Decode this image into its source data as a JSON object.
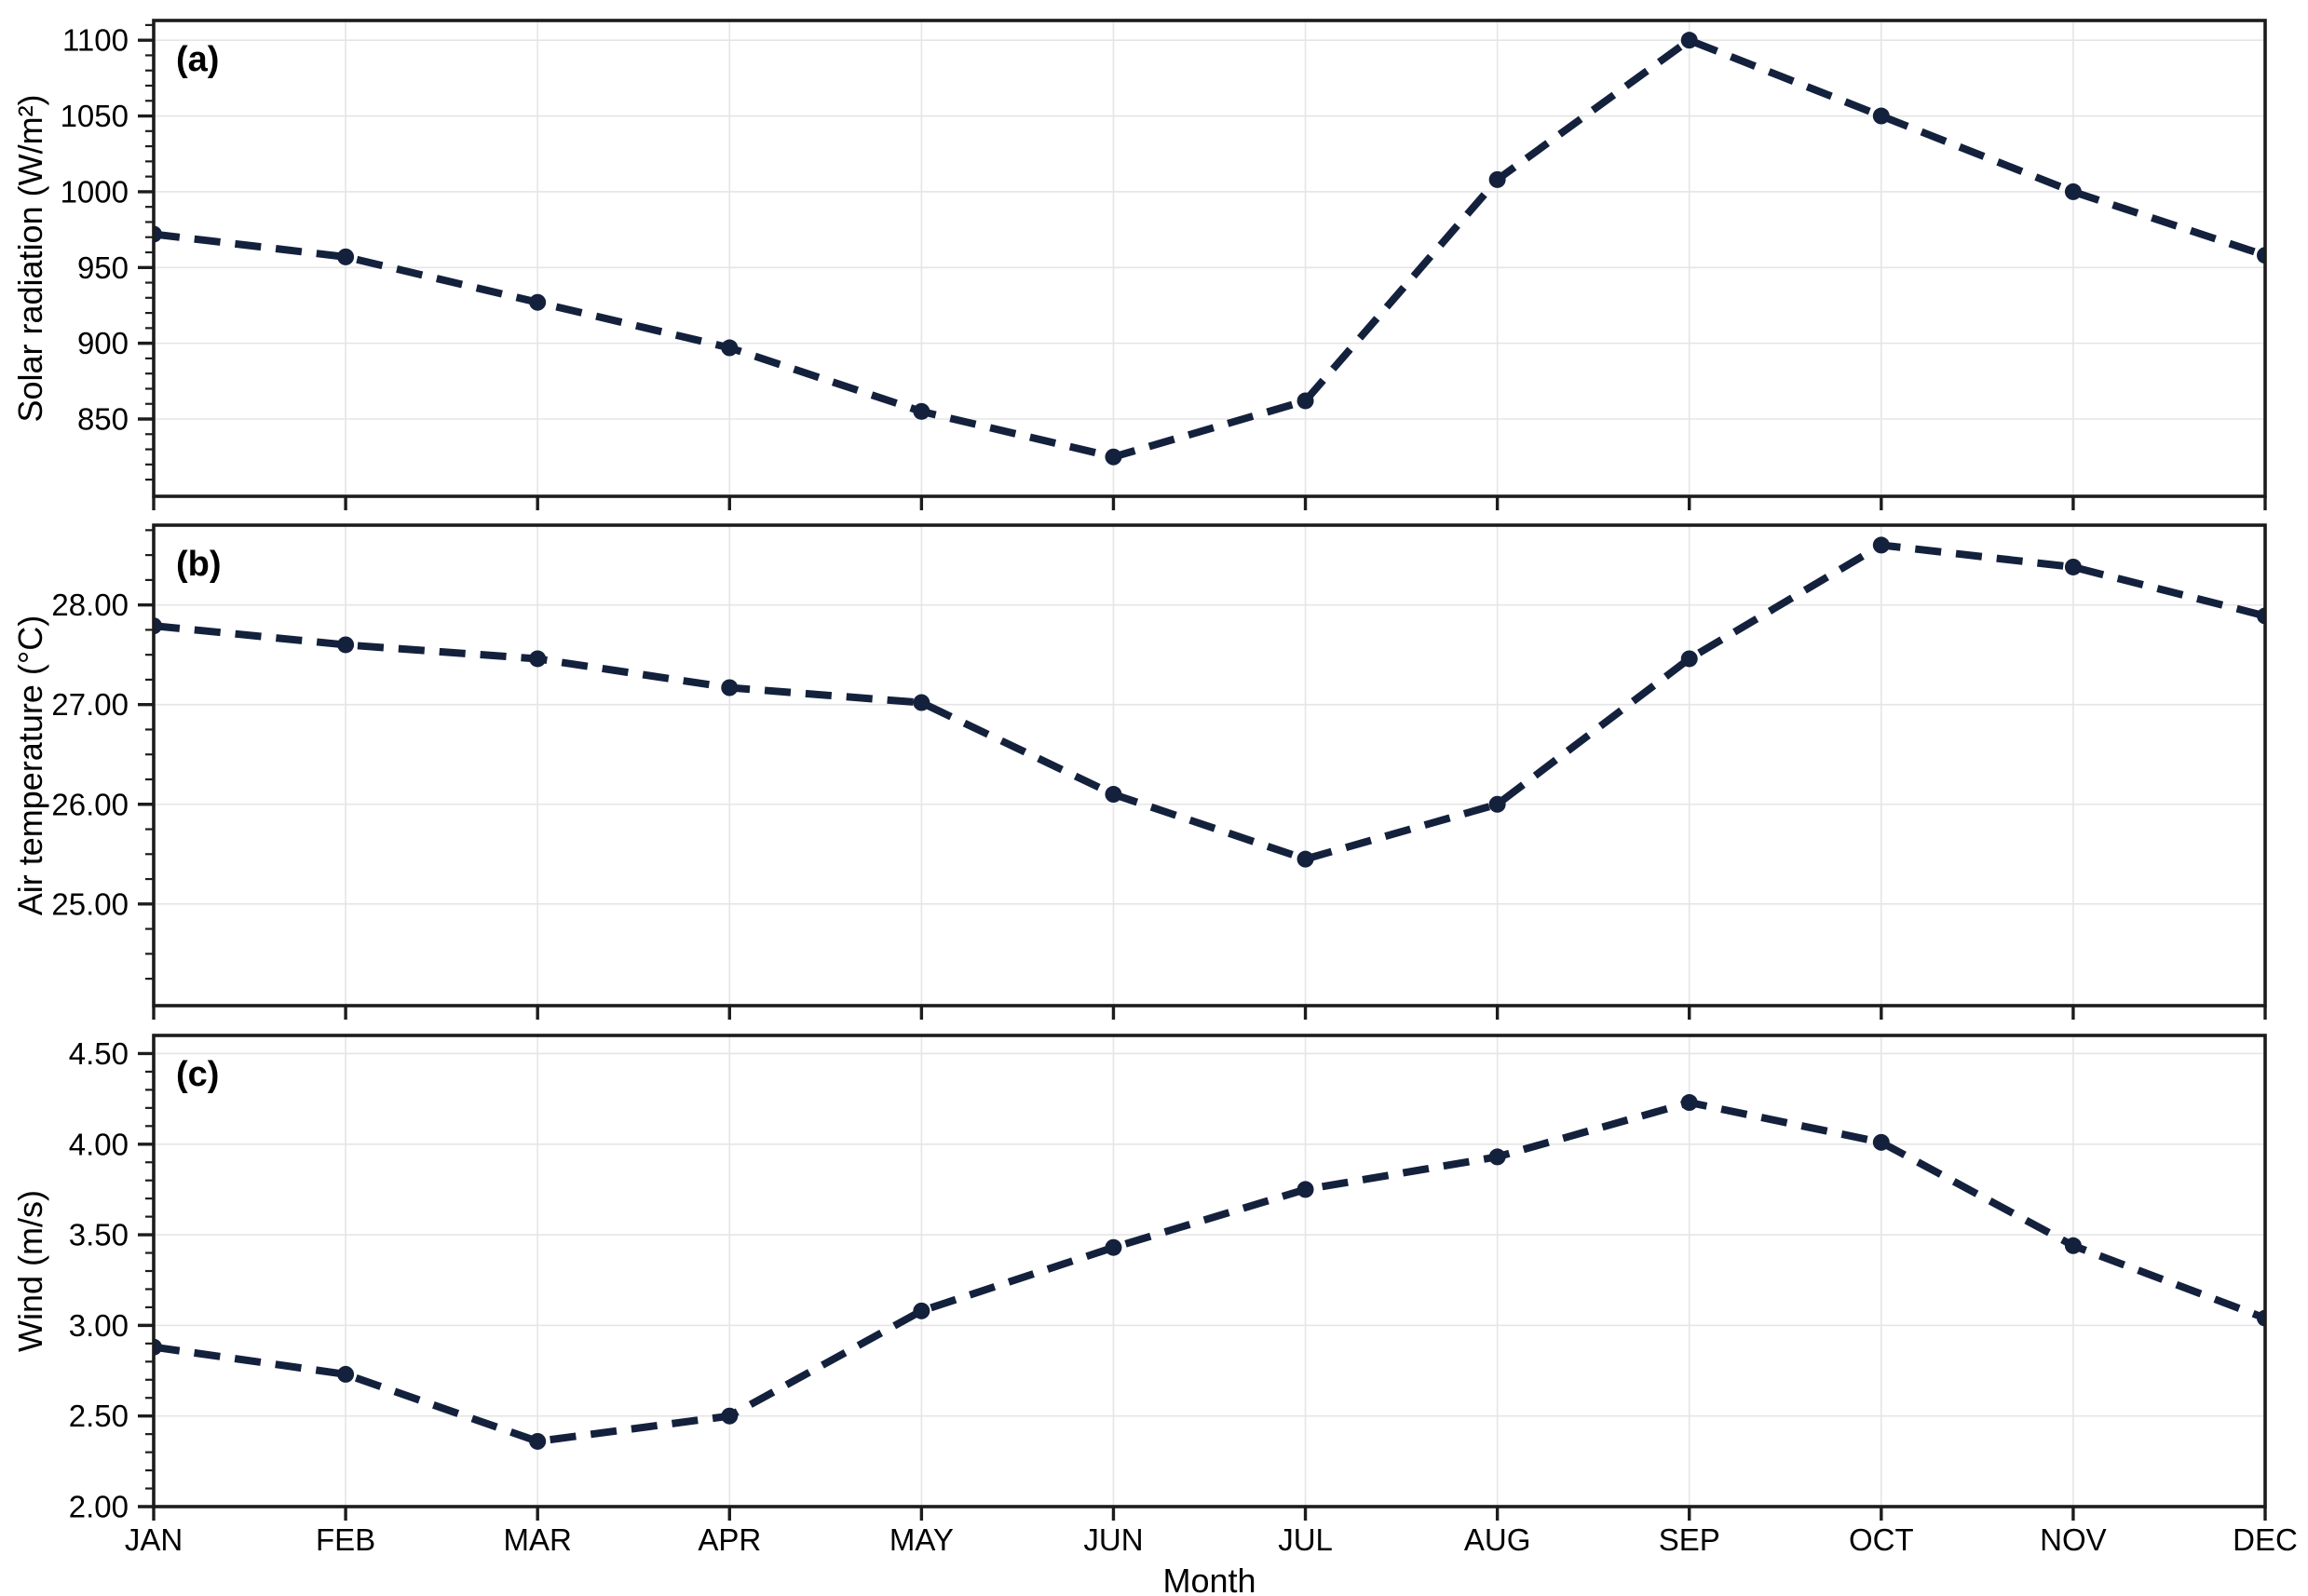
{
  "style": {
    "line_color": "#14213d",
    "marker_color": "#14213d",
    "grid_color": "#e5e5e5",
    "spine_color": "#1c1c1c",
    "background_color": "#ffffff",
    "line_style": "dashed",
    "marker": "circle"
  },
  "chart_data": [
    {
      "type": "line",
      "panel_label": "(a)",
      "ylabel": "Solar radiation (W/m²)",
      "categories": [
        "JAN",
        "FEB",
        "MAR",
        "APR",
        "MAY",
        "JUN",
        "JUL",
        "AUG",
        "SEP",
        "OCT",
        "NOV",
        "DEC"
      ],
      "values": [
        972,
        957,
        927,
        897,
        855,
        825,
        862,
        1008,
        1100,
        1050,
        1000,
        958
      ],
      "ylim": [
        799,
        1113
      ],
      "yticks": [
        850,
        900,
        950,
        1000,
        1050,
        1100
      ],
      "ytick_labels": [
        "850",
        "900",
        "950",
        "1000",
        "1050",
        "1100"
      ],
      "minor_tick_step": 10,
      "grid": true,
      "legend": "none"
    },
    {
      "type": "line",
      "panel_label": "(b)",
      "ylabel": "Air temperature (°C)",
      "categories": [
        "JAN",
        "FEB",
        "MAR",
        "APR",
        "MAY",
        "JUN",
        "JUL",
        "AUG",
        "SEP",
        "OCT",
        "NOV",
        "DEC"
      ],
      "values": [
        27.79,
        27.6,
        27.46,
        27.17,
        27.02,
        26.1,
        25.45,
        26.0,
        27.46,
        28.6,
        28.38,
        27.89
      ],
      "ylim": [
        23.98,
        28.8
      ],
      "yticks": [
        25,
        26,
        27,
        28
      ],
      "ytick_labels": [
        "25.00",
        "26.00",
        "27.00",
        "28.00"
      ],
      "minor_tick_step": 0.25,
      "grid": true,
      "legend": "none"
    },
    {
      "type": "line",
      "panel_label": "(c)",
      "ylabel": "Wind (m/s)",
      "xlabel": "Month",
      "categories": [
        "JAN",
        "FEB",
        "MAR",
        "APR",
        "MAY",
        "JUN",
        "JUL",
        "AUG",
        "SEP",
        "OCT",
        "NOV",
        "DEC"
      ],
      "values": [
        2.88,
        2.73,
        2.36,
        2.5,
        3.08,
        3.43,
        3.75,
        3.93,
        4.23,
        4.01,
        3.44,
        3.04
      ],
      "ylim": [
        2.0,
        4.6
      ],
      "yticks": [
        2.0,
        2.5,
        3.0,
        3.5,
        4.0,
        4.5
      ],
      "ytick_labels": [
        "2.00",
        "2.50",
        "3.00",
        "3.50",
        "4.00",
        "4.50"
      ],
      "minor_tick_step": 0.1,
      "grid": true,
      "legend": "none"
    }
  ]
}
